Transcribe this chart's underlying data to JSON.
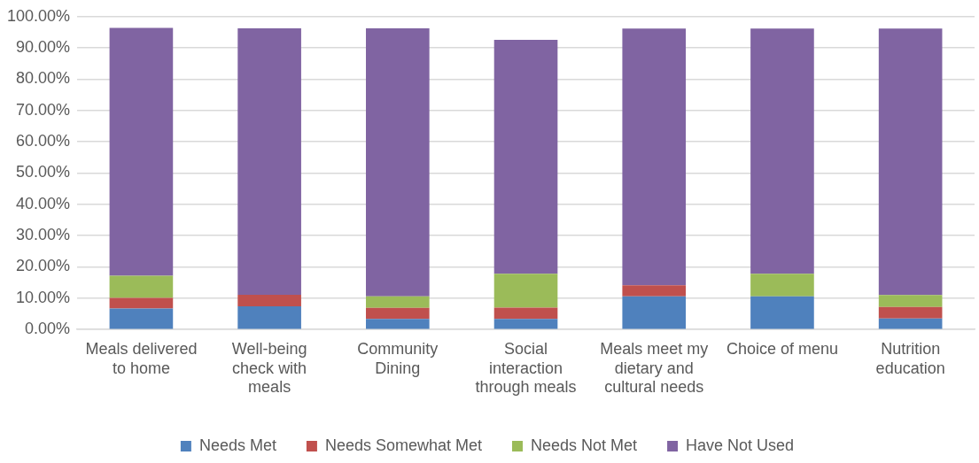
{
  "chart_data": {
    "type": "bar",
    "stacked": true,
    "categories": [
      "Meals delivered to home",
      "Well-being check with meals",
      "Community Dining",
      "Social interaction through meals",
      "Meals meet my dietary and cultural needs",
      "Choice of menu",
      "Nutrition education"
    ],
    "series": [
      {
        "name": "Needs Met",
        "color": "#4f81bd",
        "values": [
          6.7,
          7.4,
          3.4,
          3.4,
          10.6,
          10.6,
          3.5
        ]
      },
      {
        "name": "Needs Somewhat Met",
        "color": "#c0504d",
        "values": [
          3.4,
          3.7,
          3.5,
          3.6,
          3.5,
          null,
          3.7
        ]
      },
      {
        "name": "Needs Not Met",
        "color": "#9bbb59",
        "values": [
          7.1,
          null,
          3.7,
          10.8,
          null,
          7.2,
          3.8
        ]
      },
      {
        "name": "Have Not Used",
        "color": "#8064a2",
        "values": [
          79.2,
          85.2,
          85.7,
          74.8,
          82.1,
          78.4,
          85.2
        ]
      }
    ],
    "ylim": [
      0,
      100
    ],
    "yticks": [
      {
        "value": 0,
        "label": "0.00%"
      },
      {
        "value": 10,
        "label": "10.00%"
      },
      {
        "value": 20,
        "label": "20.00%"
      },
      {
        "value": 30,
        "label": "30.00%"
      },
      {
        "value": 40,
        "label": "40.00%"
      },
      {
        "value": 50,
        "label": "50.00%"
      },
      {
        "value": 60,
        "label": "60.00%"
      },
      {
        "value": 70,
        "label": "70.00%"
      },
      {
        "value": 80,
        "label": "80.00%"
      },
      {
        "value": 90,
        "label": "90.00%"
      },
      {
        "value": 100,
        "label": "100.00%"
      }
    ],
    "grid": "y",
    "legend": "bottom"
  }
}
